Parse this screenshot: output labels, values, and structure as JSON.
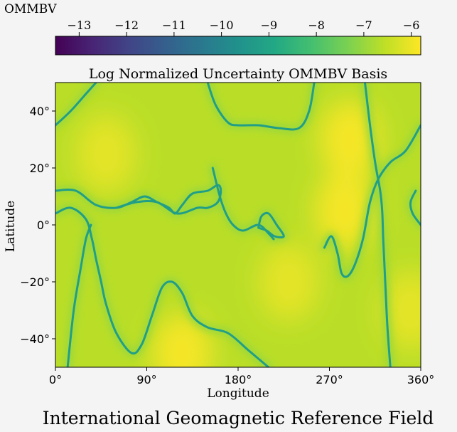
{
  "chart_data": {
    "type": "heatmap",
    "title": "Log Normalized Uncertainty OMMBV Basis",
    "suptitle": "International Geomagnetic Reference Field",
    "xlabel": "Longitude",
    "ylabel": "Latitude",
    "xlim": [
      0,
      360
    ],
    "ylim": [
      -50,
      50
    ],
    "x_ticks": [
      {
        "value": 0,
        "label": "0°"
      },
      {
        "value": 90,
        "label": "90°"
      },
      {
        "value": 180,
        "label": "180°"
      },
      {
        "value": 270,
        "label": "270°"
      },
      {
        "value": 360,
        "label": "360°"
      }
    ],
    "y_ticks": [
      {
        "value": -40,
        "label": "−40°"
      },
      {
        "value": -20,
        "label": "−20°"
      },
      {
        "value": 0,
        "label": "0°"
      },
      {
        "value": 20,
        "label": "20°"
      },
      {
        "value": 40,
        "label": "40°"
      }
    ],
    "colorbar": {
      "label": "OMMBV",
      "colormap": "viridis",
      "range": [
        -13.5,
        -5.8
      ],
      "ticks": [
        {
          "value": -13,
          "label": "−13"
        },
        {
          "value": -12,
          "label": "−12"
        },
        {
          "value": -11,
          "label": "−11"
        },
        {
          "value": -10,
          "label": "−10"
        },
        {
          "value": -9,
          "label": "−9"
        },
        {
          "value": -8,
          "label": "−8"
        },
        {
          "value": -7,
          "label": "−7"
        },
        {
          "value": -6,
          "label": "−6"
        }
      ]
    },
    "background_level": -6.6,
    "low_value_contours": [
      {
        "value": -9.2,
        "lon_lat": [
          [
            0,
            35
          ],
          [
            15,
            40
          ],
          [
            30,
            46
          ],
          [
            40,
            50
          ]
        ]
      },
      {
        "value": -9.2,
        "lon_lat": [
          [
            0,
            4
          ],
          [
            15,
            6
          ],
          [
            30,
            2
          ],
          [
            36,
            -5
          ],
          [
            40,
            -12
          ],
          [
            45,
            -20
          ],
          [
            50,
            -28
          ],
          [
            60,
            -38
          ],
          [
            75,
            -45
          ],
          [
            85,
            -42
          ],
          [
            95,
            -32
          ],
          [
            105,
            -22
          ],
          [
            115,
            -20
          ],
          [
            125,
            -24
          ],
          [
            135,
            -32
          ],
          [
            150,
            -36
          ],
          [
            170,
            -38
          ],
          [
            190,
            -44
          ],
          [
            210,
            -50
          ]
        ]
      },
      {
        "value": -9.2,
        "lon_lat": [
          [
            0,
            12
          ],
          [
            20,
            12
          ],
          [
            40,
            7
          ],
          [
            60,
            6
          ],
          [
            75,
            8
          ],
          [
            88,
            10
          ],
          [
            100,
            8
          ],
          [
            112,
            6
          ],
          [
            118,
            4
          ],
          [
            125,
            7
          ],
          [
            135,
            11
          ],
          [
            150,
            12
          ],
          [
            160,
            14
          ],
          [
            163,
            12
          ],
          [
            160,
            8
          ],
          [
            150,
            6
          ],
          [
            140,
            6
          ],
          [
            120,
            4
          ],
          [
            100,
            8
          ],
          [
            80,
            8
          ],
          [
            60,
            6
          ]
        ]
      },
      {
        "value": -9.2,
        "lon_lat": [
          [
            12,
            -50
          ],
          [
            18,
            -30
          ],
          [
            25,
            -15
          ],
          [
            30,
            -5
          ],
          [
            35,
            0
          ]
        ]
      },
      {
        "value": -9.2,
        "lon_lat": [
          [
            150,
            50
          ],
          [
            158,
            42
          ],
          [
            170,
            36
          ],
          [
            180,
            35
          ],
          [
            200,
            35
          ],
          [
            220,
            34
          ],
          [
            240,
            34
          ],
          [
            250,
            40
          ],
          [
            255,
            50
          ]
        ]
      },
      {
        "value": -9.2,
        "lon_lat": [
          [
            155,
            20
          ],
          [
            162,
            10
          ],
          [
            168,
            4
          ],
          [
            175,
            0
          ],
          [
            185,
            -2
          ],
          [
            200,
            0
          ],
          [
            210,
            -3
          ],
          [
            215,
            -5
          ]
        ]
      },
      {
        "value": -9.2,
        "lon_lat": [
          [
            200,
            -1
          ],
          [
            203,
            3
          ],
          [
            210,
            4
          ],
          [
            218,
            0
          ],
          [
            225,
            -4
          ],
          [
            216,
            -4
          ],
          [
            208,
            -2
          ],
          [
            200,
            -1
          ]
        ]
      },
      {
        "value": -9.2,
        "lon_lat": [
          [
            305,
            50
          ],
          [
            310,
            35
          ],
          [
            315,
            22
          ],
          [
            320,
            12
          ],
          [
            322,
            5
          ],
          [
            323,
            -5
          ],
          [
            325,
            -20
          ],
          [
            327,
            -35
          ],
          [
            330,
            -50
          ]
        ]
      },
      {
        "value": -9.2,
        "lon_lat": [
          [
            265,
            -8
          ],
          [
            272,
            -4
          ],
          [
            278,
            -10
          ],
          [
            282,
            -17
          ],
          [
            288,
            -18
          ],
          [
            295,
            -14
          ],
          [
            303,
            -5
          ],
          [
            310,
            8
          ],
          [
            318,
            16
          ],
          [
            330,
            22
          ],
          [
            345,
            26
          ],
          [
            360,
            35
          ]
        ]
      },
      {
        "value": -9.2,
        "lon_lat": [
          [
            355,
            12
          ],
          [
            350,
            8
          ],
          [
            352,
            4
          ],
          [
            360,
            0
          ]
        ]
      }
    ],
    "high_value_regions": [
      {
        "value": -5.9,
        "lon_lat": [
          290,
          30
        ]
      },
      {
        "value": -5.9,
        "lon_lat": [
          285,
          5
        ]
      },
      {
        "value": -5.9,
        "lon_lat": [
          125,
          -45
        ]
      },
      {
        "value": -6.1,
        "lon_lat": [
          50,
          25
        ]
      },
      {
        "value": -6.1,
        "lon_lat": [
          230,
          -20
        ]
      },
      {
        "value": -6.1,
        "lon_lat": [
          350,
          -30
        ]
      }
    ]
  }
}
